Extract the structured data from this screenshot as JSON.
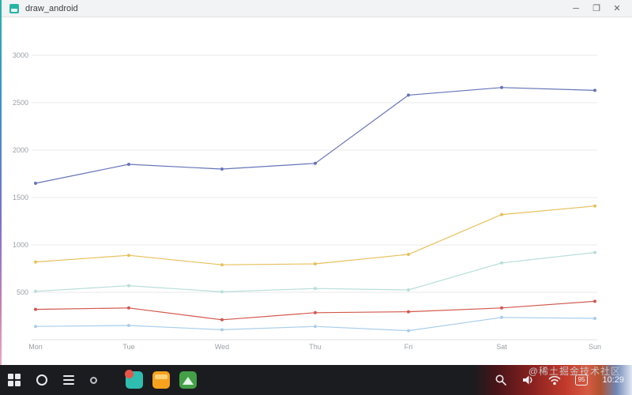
{
  "window": {
    "title": "draw_android",
    "controls": {
      "minimize": "─",
      "maximize": "❐",
      "close": "✕"
    }
  },
  "chart_data": {
    "type": "line",
    "title": "",
    "xlabel": "",
    "ylabel": "",
    "x": [
      "Mon",
      "Tue",
      "Wed",
      "Thu",
      "Fri",
      "Sat",
      "Sun"
    ],
    "series": [
      {
        "name": "indigo-series",
        "color": "#6674b8",
        "values": [
          1650,
          1850,
          1800,
          1860,
          2580,
          2660,
          2630
        ]
      },
      {
        "name": "yellow-series",
        "color": "#e6c05a",
        "values": [
          820,
          890,
          790,
          800,
          900,
          1320,
          1410
        ]
      },
      {
        "name": "teal-series",
        "color": "#b8ded9",
        "values": [
          510,
          570,
          505,
          540,
          525,
          810,
          920
        ]
      },
      {
        "name": "red-series",
        "color": "#d2574e",
        "values": [
          320,
          335,
          210,
          285,
          295,
          335,
          405
        ]
      },
      {
        "name": "lightblue-series",
        "color": "#a9cdeb",
        "values": [
          140,
          150,
          105,
          140,
          95,
          235,
          225
        ]
      }
    ],
    "yticks": [
      500,
      1000,
      1500,
      2000,
      2500,
      3000
    ],
    "ylim": [
      0,
      3000
    ],
    "grid": true,
    "legend": "none",
    "marker": "dot"
  },
  "watermark": {
    "text": "@稀土掘金技术社区"
  },
  "taskbar": {
    "left_icons": [
      "app-launcher-icon",
      "circle-icon",
      "menu-icon",
      "dot-icon"
    ],
    "app_shortcuts": [
      "teal-app-icon",
      "orange-app-icon",
      "green-app-icon"
    ],
    "status": {
      "icons": [
        "search-icon",
        "volume-icon",
        "wifi-icon",
        "battery-icon"
      ],
      "battery_percent": "95",
      "time": "10:29"
    }
  }
}
